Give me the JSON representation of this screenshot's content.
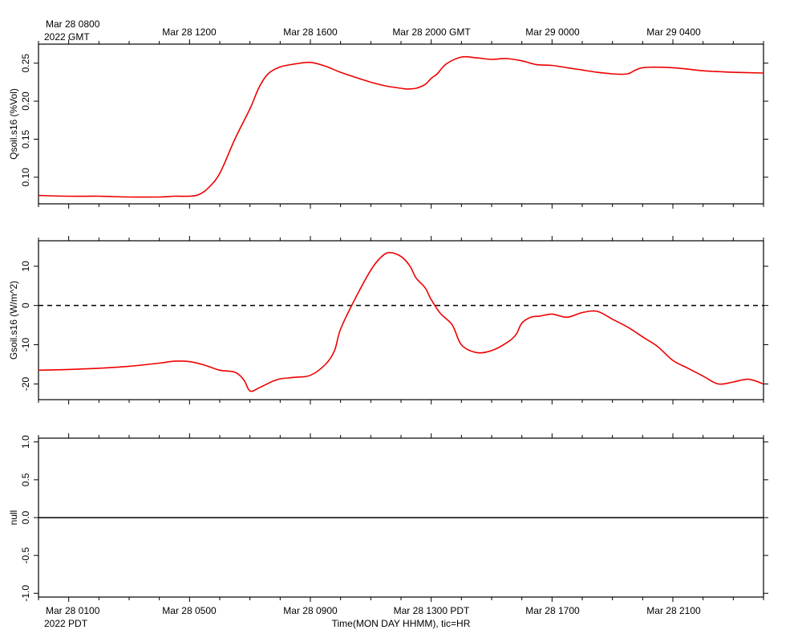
{
  "colors": {
    "series": "#ee0000",
    "axis": "#000000",
    "zero_line": "#000000",
    "background": "#ffffff"
  },
  "top_axis": {
    "unit_label": "2022 GMT",
    "tick_labels": [
      {
        "hour": 1,
        "label": "Mar 28 0800"
      },
      {
        "hour": 5,
        "label": "Mar 28 1200"
      },
      {
        "hour": 9,
        "label": "Mar 28 1600"
      },
      {
        "hour": 13,
        "label": "Mar 28 2000 GMT"
      },
      {
        "hour": 17,
        "label": "Mar 29 0000"
      },
      {
        "hour": 21,
        "label": "Mar 29 0400"
      }
    ]
  },
  "bottom_axis": {
    "unit_label": "2022 PDT",
    "xlabel": "Time(MON DAY HHMM), tic=HR",
    "tick_labels": [
      {
        "hour": 1,
        "label": "Mar 28 0100"
      },
      {
        "hour": 5,
        "label": "Mar 28 0500"
      },
      {
        "hour": 9,
        "label": "Mar 28 0900"
      },
      {
        "hour": 13,
        "label": "Mar 28 1300 PDT"
      },
      {
        "hour": 17,
        "label": "Mar 28 1700"
      },
      {
        "hour": 21,
        "label": "Mar 28 2100"
      }
    ]
  },
  "chart_data": [
    {
      "type": "line",
      "ylabel": "Qsoil.s16 (%Vol)",
      "xlim": [
        0,
        24
      ],
      "ylim": [
        0.065,
        0.275
      ],
      "yticks": [
        0.1,
        0.15,
        0.2,
        0.25
      ],
      "ytick_labels": [
        "0.10",
        "0.15",
        "0.20",
        "0.25"
      ],
      "x_unit": "hours since Mar 28 0000 PDT",
      "series": [
        {
          "x": [
            0,
            1,
            2,
            3,
            4,
            4.5,
            5,
            5.3,
            5.6,
            6,
            6.5,
            7,
            7.3,
            7.6,
            8,
            8.5,
            9,
            9.5,
            10,
            11,
            11.5,
            12,
            12.2,
            12.5,
            12.8,
            13,
            13.2,
            13.5,
            14,
            14.5,
            15,
            15.5,
            16,
            16.5,
            17,
            17.5,
            18,
            18.5,
            19,
            19.5,
            20,
            21,
            22,
            23,
            24
          ],
          "y": [
            0.076,
            0.075,
            0.075,
            0.074,
            0.074,
            0.075,
            0.075,
            0.077,
            0.085,
            0.105,
            0.15,
            0.19,
            0.218,
            0.236,
            0.245,
            0.249,
            0.251,
            0.246,
            0.238,
            0.225,
            0.22,
            0.217,
            0.216,
            0.217,
            0.222,
            0.23,
            0.236,
            0.249,
            0.258,
            0.257,
            0.255,
            0.256,
            0.253,
            0.248,
            0.247,
            0.244,
            0.241,
            0.238,
            0.236,
            0.236,
            0.244,
            0.244,
            0.24,
            0.238,
            0.237
          ]
        }
      ]
    },
    {
      "type": "line",
      "ylabel": "Gsoil.s16 (W/m^2)",
      "xlim": [
        0,
        24
      ],
      "ylim": [
        -24,
        16.5
      ],
      "yticks": [
        10,
        0,
        -10,
        -20
      ],
      "ytick_labels": [
        "10",
        "0",
        "-10",
        "-20"
      ],
      "reference_line": {
        "y": 0,
        "style": "dashed"
      },
      "series": [
        {
          "x": [
            0,
            1,
            2,
            3,
            4,
            4.5,
            5,
            5.5,
            6,
            6.5,
            6.8,
            7,
            7.3,
            7.7,
            8,
            8.5,
            9,
            9.5,
            9.8,
            10,
            10.5,
            11,
            11.3,
            11.6,
            12,
            12.3,
            12.5,
            12.8,
            13,
            13.3,
            13.7,
            14,
            14.5,
            15,
            15.5,
            15.8,
            16,
            16.3,
            16.6,
            17,
            17.5,
            18,
            18.5,
            19,
            19.5,
            20,
            20.5,
            21,
            21.5,
            22,
            22.5,
            23,
            23.5,
            24
          ],
          "y": [
            -16.5,
            -16.3,
            -16.0,
            -15.5,
            -14.7,
            -14.2,
            -14.3,
            -15.2,
            -16.5,
            -17.0,
            -19.0,
            -21.8,
            -21.0,
            -19.5,
            -18.7,
            -18.3,
            -17.8,
            -15.0,
            -11.5,
            -6.0,
            2.0,
            9.0,
            12.0,
            13.5,
            12.5,
            10.0,
            7.0,
            4.5,
            1.5,
            -2.0,
            -5.0,
            -10.0,
            -12.0,
            -11.5,
            -9.5,
            -7.5,
            -4.5,
            -3.0,
            -2.7,
            -2.2,
            -3.0,
            -1.8,
            -1.5,
            -3.5,
            -5.5,
            -8.0,
            -10.5,
            -14.0,
            -16.0,
            -18.0,
            -20.0,
            -19.5,
            -18.8,
            -20.0
          ]
        }
      ]
    },
    {
      "type": "line",
      "ylabel": "null",
      "xlim": [
        0,
        24
      ],
      "ylim": [
        -1.05,
        1.05
      ],
      "yticks": [
        1.0,
        0.5,
        0.0,
        -0.5,
        -1.0
      ],
      "ytick_labels": [
        "1.0",
        "0.5",
        "0.0",
        "-0.5",
        "-1.0"
      ],
      "series": [
        {
          "x": [
            0,
            24
          ],
          "y": [
            0,
            0
          ]
        }
      ]
    }
  ]
}
